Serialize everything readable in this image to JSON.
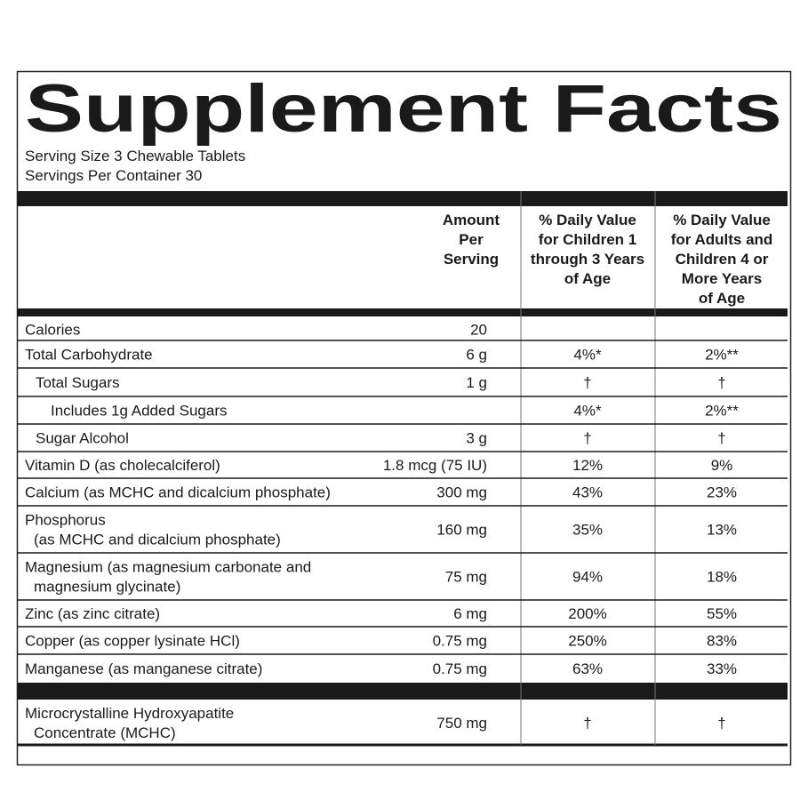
{
  "title": "Supplement Facts",
  "serving_size": "Serving Size 3 Chewable Tablets",
  "servings_per_container": "Servings Per Container 30",
  "table": {
    "headers": [
      [
        "Amount",
        "Per",
        "Serving"
      ],
      [
        "% Daily Value",
        "for Children 1",
        "through 3 Years",
        "of Age"
      ],
      [
        "% Daily Value",
        "for Adults and",
        "Children 4 or",
        "More Years",
        "of Age"
      ]
    ],
    "rows": [
      {
        "name": [
          "Calories"
        ],
        "amount": "20"
      },
      {
        "name": [
          "Total Carbohydrate"
        ],
        "amount": "6 g",
        "dv_children": "4%*",
        "dv_adults": "2%**"
      },
      {
        "name": [
          "Total Sugars"
        ],
        "amount": "1 g",
        "dv_children": "†",
        "dv_adults": "†"
      },
      {
        "name": [
          "Includes 1g Added Sugars"
        ],
        "dv_children": "4%*",
        "dv_adults": "2%**"
      },
      {
        "name": [
          "Sugar Alcohol"
        ],
        "amount": "3 g",
        "dv_children": "†",
        "dv_adults": "†"
      },
      {
        "name": [
          "Vitamin D (as cholecalciferol)"
        ],
        "amount": "1.8 mcg (75 IU)",
        "dv_children": "12%",
        "dv_adults": "9%"
      },
      {
        "name": [
          "Calcium (as MCHC and dicalcium phosphate)"
        ],
        "amount": "300 mg",
        "dv_children": "43%",
        "dv_adults": "23%"
      },
      {
        "name": [
          "Phosphorus",
          "(as MCHC and dicalcium phosphate)"
        ],
        "amount": "160 mg",
        "dv_children": "35%",
        "dv_adults": "13%"
      },
      {
        "name": [
          "Magnesium (as magnesium carbonate and",
          "magnesium glycinate)"
        ],
        "amount": "75 mg",
        "dv_children": "94%",
        "dv_adults": "18%"
      },
      {
        "name": [
          "Zinc (as zinc citrate)"
        ],
        "amount": "6 mg",
        "dv_children": "200%",
        "dv_adults": "55%"
      },
      {
        "name": [
          "Copper (as copper lysinate HCl)"
        ],
        "amount": "0.75 mg",
        "dv_children": "250%",
        "dv_adults": "83%"
      },
      {
        "name": [
          "Manganese (as manganese citrate)"
        ],
        "amount": "0.75 mg",
        "dv_children": "63%",
        "dv_adults": "33%"
      },
      {
        "name": [
          "Microcrystalline Hydroxyapatite",
          "Concentrate (MCHC)"
        ],
        "amount": "750 mg",
        "dv_children": "†",
        "dv_adults": "†"
      }
    ]
  }
}
